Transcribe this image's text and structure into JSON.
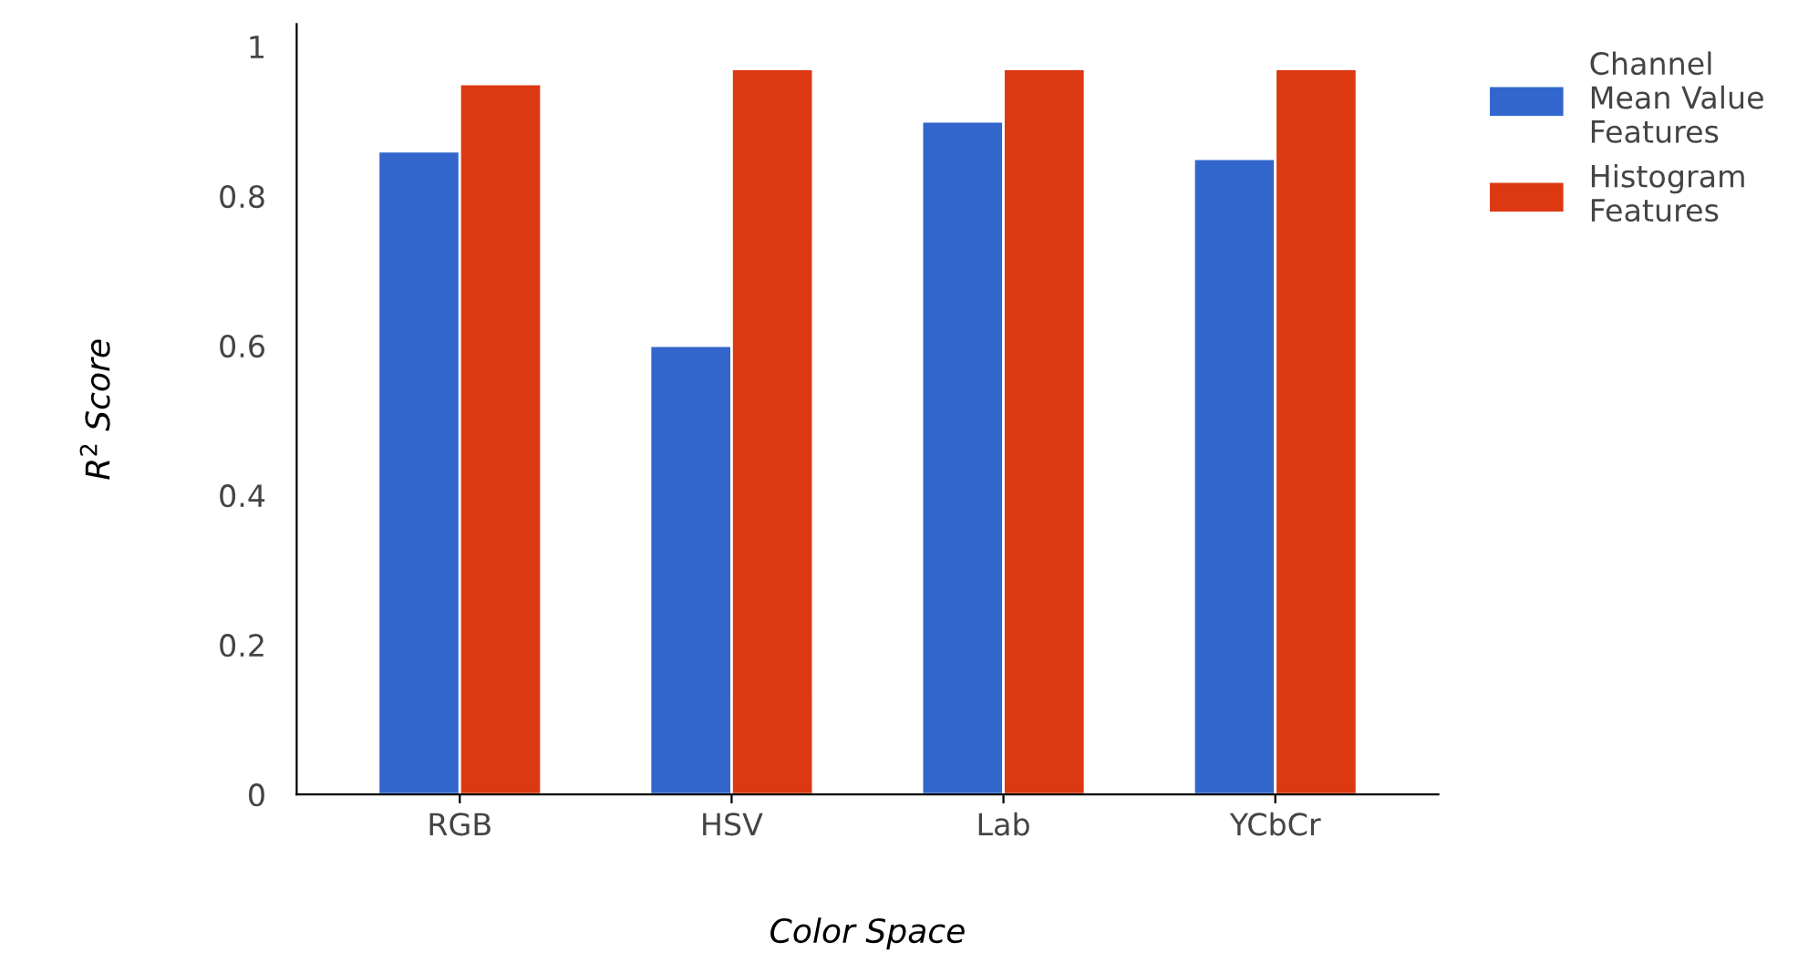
{
  "chart_data": {
    "type": "bar",
    "xlabel": "Color Space",
    "ylabel": "R$^{2}$ Score",
    "categories": [
      "RGB",
      "HSV",
      "Lab",
      "YCbCr"
    ],
    "series": [
      {
        "name": "Channel Mean Value Features",
        "color": "#3366cc",
        "values": [
          0.86,
          0.6,
          0.9,
          0.85
        ]
      },
      {
        "name": "Histogram Features",
        "color": "#dc3912",
        "values": [
          0.95,
          0.97,
          0.97,
          0.97
        ]
      }
    ],
    "ylim": [
      0,
      1.03
    ],
    "yticks": [
      0,
      0.2,
      0.4,
      0.6,
      0.8,
      1
    ],
    "grid": false,
    "legend": "top right"
  }
}
